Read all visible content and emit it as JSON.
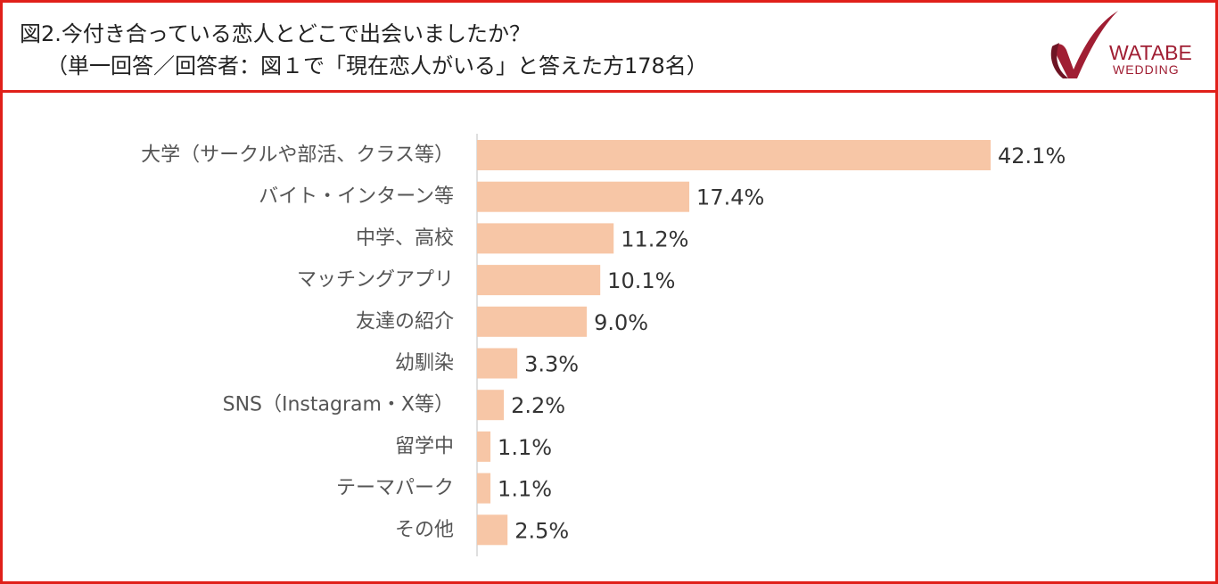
{
  "header": {
    "title_line1": "図2.今付き合っている恋人とどこで出会いましたか？",
    "title_line2": "（単一回答／回答者：図１で「現在恋人がいる」と答えた方178名）"
  },
  "logo": {
    "text_line1": "WATABE",
    "text_line2": "WEDDING",
    "color": "#a01e33"
  },
  "chart_data": {
    "type": "bar",
    "orientation": "horizontal",
    "categories": [
      "大学（サークルや部活、クラス等）",
      "バイト・インターン等",
      "中学、高校",
      "マッチングアプリ",
      "友達の紹介",
      "幼馴染",
      "SNS（Instagram・X等）",
      "留学中",
      "テーマパーク",
      "その他"
    ],
    "values": [
      42.1,
      17.4,
      11.2,
      10.1,
      9.0,
      3.3,
      2.2,
      1.1,
      1.1,
      2.5
    ],
    "value_labels": [
      "42.1%",
      "17.4%",
      "11.2%",
      "10.1%",
      "9.0%",
      "3.3%",
      "2.2%",
      "1.1%",
      "1.1%",
      "2.5%"
    ],
    "unit": "%",
    "xlim": [
      0,
      42.1
    ],
    "bar_color": "#f7c6a6",
    "grid": false
  }
}
